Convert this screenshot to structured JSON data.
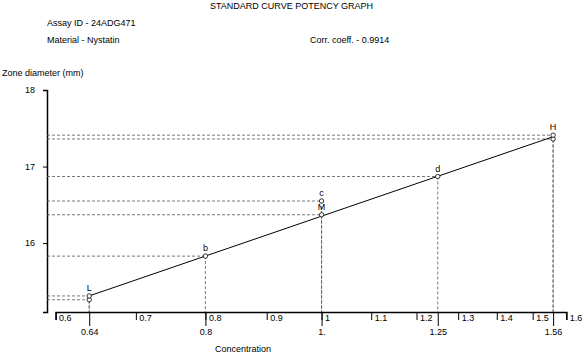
{
  "chart_data": {
    "type": "scatter",
    "title": "STANDARD CURVE POTENCY GRAPH",
    "annotations": [
      "Assay ID - 24ADG471",
      "Material - Nystatin",
      "Corr. coeff. - 0.9914"
    ],
    "y_label": "Zone diameter (mm)",
    "x_label": "Concentration",
    "x": [
      0.64,
      0.64,
      0.8,
      1,
      1,
      1.25,
      1.56,
      1.56
    ],
    "values": [
      15.26,
      15.31,
      15.83,
      16.37,
      16.55,
      16.87,
      17.36,
      17.41
    ],
    "labels": [
      null,
      "L",
      "b",
      "M",
      "c",
      "d",
      null,
      "H"
    ],
    "fit_line": {
      "x": [
        0.64,
        1.56
      ],
      "values": [
        15.31,
        17.39
      ]
    },
    "log": "x",
    "marker": "circle",
    "line_style": "dashed",
    "color": "#000000",
    "xlim": [
      0.6,
      1.6
    ],
    "xticks": [
      0.6,
      0.7,
      0.8,
      0.9,
      1,
      1.1,
      1.2,
      1.3,
      1.4,
      1.5,
      1.6
    ],
    "concentration_ticks": [
      {
        "value": 0.64,
        "label": "0.64"
      },
      {
        "value": 0.8,
        "label": "0.8"
      },
      {
        "value": 1,
        "label": "1."
      },
      {
        "value": 1.25,
        "label": "1.25"
      },
      {
        "value": 1.56,
        "label": "1.56"
      }
    ],
    "ylim": [
      15.1,
      18
    ],
    "yticks": [
      16,
      17,
      18
    ]
  }
}
